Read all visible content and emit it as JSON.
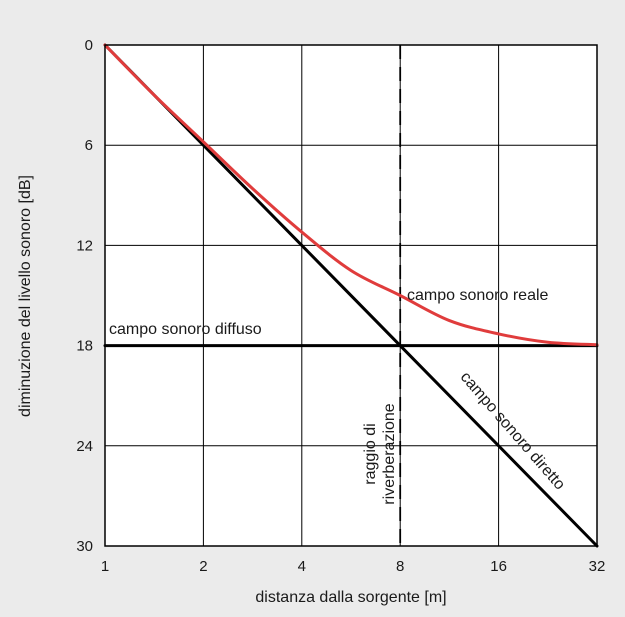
{
  "chart_data": {
    "type": "line",
    "xlabel": "distanza dalla sorgente [m]",
    "ylabel": "diminuzione del livello sonoro [dB]",
    "x_scale": "log2",
    "y_inverted": true,
    "xlim": [
      1,
      32
    ],
    "ylim": [
      0,
      30
    ],
    "x_ticks": [
      1,
      2,
      4,
      8,
      16,
      32
    ],
    "x_tick_labels": [
      "1",
      "2",
      "4",
      "8",
      "16",
      "32"
    ],
    "y_ticks": [
      0,
      6,
      12,
      18,
      24,
      30
    ],
    "y_tick_labels": [
      "0",
      "6",
      "12",
      "18",
      "24",
      "30"
    ],
    "grid": true,
    "colors": {
      "real": "#e03c3c",
      "direct": "#000000",
      "diffuse": "#000000",
      "reverb": "#000000"
    },
    "series": [
      {
        "name": "campo sonoro diretto",
        "x": [
          1,
          32
        ],
        "y": [
          0,
          30
        ]
      },
      {
        "name": "campo sonoro diffuso",
        "x": [
          1,
          32
        ],
        "y": [
          18,
          18
        ]
      },
      {
        "name": "campo sonoro reale",
        "x": [
          1,
          1.414,
          2,
          2.828,
          4,
          5.657,
          8,
          11.31,
          16,
          22.63,
          32
        ],
        "y": [
          0,
          3.0,
          5.8,
          8.6,
          11.2,
          13.5,
          15.0,
          16.5,
          17.3,
          17.8,
          17.95
        ]
      }
    ],
    "reference_line": {
      "x": 8,
      "label_line1": "raggio di",
      "label_line2": "riverberazione"
    }
  }
}
